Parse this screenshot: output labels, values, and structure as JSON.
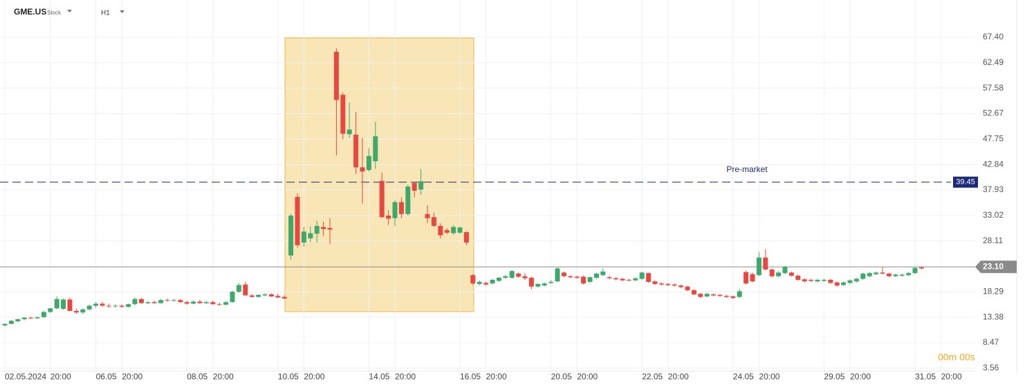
{
  "header": {
    "symbol": "GME.US",
    "asset_type": "Stock",
    "interval": "H1"
  },
  "countdown": "00m 00s",
  "chart_data": {
    "type": "candlestick",
    "categories": [
      "02.05.2024",
      null,
      null,
      null,
      null,
      null,
      null,
      "20:00",
      null,
      null,
      null,
      null,
      null,
      null,
      "06.05",
      null,
      null,
      null,
      "20:00",
      null,
      null,
      null,
      null,
      null,
      null,
      null,
      null,
      null,
      "08.05",
      null,
      null,
      null,
      "20:00",
      null,
      null,
      null,
      null,
      null,
      null,
      null,
      null,
      null,
      "10.05",
      null,
      null,
      null,
      "20:00",
      null,
      null,
      null,
      null,
      null,
      null,
      null,
      null,
      null,
      "14.05",
      null,
      null,
      null,
      "20:00",
      null,
      null,
      null,
      null,
      null,
      null,
      null,
      null,
      null,
      "16.05",
      null,
      null,
      null,
      "20:00",
      null,
      null,
      null,
      null,
      null,
      null,
      null,
      null,
      null,
      "20.05",
      null,
      null,
      null,
      "20:00",
      null,
      null,
      null,
      null,
      null,
      null,
      null,
      null,
      null,
      "22.05",
      null,
      null,
      null,
      "20:00",
      null,
      null,
      null,
      null,
      null,
      null,
      null,
      null,
      null,
      "24.05",
      null,
      null,
      null,
      "20:00",
      null,
      null,
      null,
      null,
      null,
      null,
      null,
      null,
      null,
      "29.05",
      null,
      null,
      null,
      "20:00",
      null,
      null,
      null,
      null,
      null,
      null,
      null,
      null,
      null,
      "31.05",
      null,
      null,
      null,
      "20:00"
    ],
    "open": [
      11.8,
      12.1,
      12.6,
      13.0,
      13.3,
      13.2,
      13.4,
      14.4,
      15.1,
      15.0,
      16.8,
      14.6,
      14.3,
      14.9,
      15.6,
      16.0,
      15.6,
      15.5,
      15.6,
      15.4,
      15.9,
      16.9,
      16.1,
      16.3,
      16.1,
      16.7,
      16.6,
      16.7,
      16.3,
      16.0,
      16.4,
      16.1,
      16.3,
      15.9,
      15.8,
      16.3,
      18.3,
      19.7,
      17.6,
      17.3,
      17.6,
      17.8,
      17.5,
      17.3,
      25.3,
      36.6,
      27.8,
      28.6,
      29.5,
      30.8,
      30.6,
      64.6,
      56.3,
      48.7,
      48.6,
      42.3,
      41.8,
      43.5,
      39.7,
      33.0,
      32.5,
      35.6,
      33.3,
      39.3,
      38.0,
      33.3,
      32.7,
      31.0,
      30.2,
      29.6,
      29.7,
      29.8,
      21.5,
      19.8,
      20.0,
      19.9,
      20.4,
      21.0,
      21.0,
      21.8,
      21.3,
      21.0,
      19.3,
      19.5,
      20.0,
      20.3,
      22.0,
      21.3,
      21.2,
      21.2,
      20.2,
      21.0,
      21.5,
      21.1,
      20.9,
      20.8,
      20.6,
      20.5,
      20.8,
      21.9,
      20.3,
      19.9,
      19.8,
      19.7,
      19.5,
      19.3,
      18.6,
      17.9,
      17.4,
      17.8,
      17.7,
      17.5,
      17.4,
      17.3,
      22.1,
      21.7,
      21.5,
      24.9,
      22.6,
      21.3,
      21.9,
      22.0,
      21.4,
      20.7,
      20.6,
      20.3,
      20.4,
      20.6,
      20.1,
      19.6,
      20.0,
      20.3,
      20.8,
      21.3,
      21.7,
      22.0,
      21.8,
      21.3,
      21.4,
      21.5,
      21.9,
      23.0,
      null,
      null,
      null
    ],
    "high": [
      12.2,
      12.8,
      13.1,
      13.4,
      13.5,
      13.5,
      14.6,
      15.2,
      17.4,
      17.0,
      17.2,
      15.0,
      15.1,
      15.8,
      16.3,
      16.4,
      16.0,
      15.9,
      15.9,
      16.0,
      17.2,
      17.1,
      16.5,
      16.6,
      16.9,
      17.0,
      16.9,
      16.9,
      16.6,
      16.6,
      16.7,
      16.5,
      16.6,
      16.2,
      16.5,
      18.5,
      20.0,
      20.2,
      17.9,
      17.8,
      18.0,
      18.0,
      17.9,
      17.6,
      33.4,
      37.3,
      30.8,
      30.9,
      32.0,
      31.8,
      32.5,
      65.3,
      56.8,
      54.8,
      53.0,
      48.0,
      46.0,
      51.1,
      41.3,
      34.0,
      36.0,
      36.5,
      39.0,
      39.5,
      42.0,
      35.0,
      33.6,
      31.5,
      30.6,
      31.2,
      30.9,
      30.0,
      21.7,
      20.5,
      20.3,
      20.8,
      21.2,
      21.6,
      22.5,
      22.0,
      21.9,
      21.2,
      20.0,
      20.1,
      20.6,
      23.0,
      22.2,
      21.5,
      21.4,
      21.4,
      21.3,
      22.0,
      22.8,
      21.4,
      21.1,
      21.0,
      20.8,
      21.1,
      22.2,
      22.0,
      20.5,
      20.1,
      20.0,
      19.9,
      19.7,
      19.5,
      18.8,
      18.1,
      18.1,
      18.0,
      17.9,
      17.7,
      17.6,
      18.9,
      22.4,
      22.0,
      26.0,
      26.5,
      22.8,
      22.3,
      23.3,
      22.2,
      21.6,
      20.9,
      20.8,
      20.8,
      20.8,
      20.8,
      20.3,
      20.3,
      20.7,
      21.0,
      22.0,
      22.1,
      22.2,
      23.0,
      22.0,
      21.8,
      21.8,
      22.1,
      23.1,
      23.2,
      null,
      null,
      null
    ],
    "low": [
      11.6,
      12.0,
      12.4,
      12.8,
      13.0,
      13.0,
      13.3,
      14.2,
      14.9,
      14.8,
      14.5,
      14.0,
      14.0,
      14.7,
      15.2,
      15.4,
      15.2,
      15.2,
      15.2,
      15.2,
      15.7,
      16.0,
      15.9,
      16.0,
      16.0,
      16.4,
      16.4,
      16.2,
      15.8,
      15.9,
      16.0,
      15.9,
      15.8,
      15.6,
      15.7,
      16.2,
      18.1,
      17.5,
      17.2,
      17.2,
      17.4,
      17.3,
      17.1,
      16.9,
      24.5,
      26.8,
      27.0,
      27.9,
      27.8,
      29.0,
      27.5,
      44.6,
      47.7,
      48.0,
      41.0,
      35.3,
      41.5,
      42.0,
      32.5,
      31.2,
      31.0,
      32.5,
      33.0,
      36.5,
      37.0,
      31.5,
      30.8,
      28.6,
      29.4,
      29.3,
      29.5,
      27.3,
      19.6,
      19.5,
      19.5,
      19.7,
      20.2,
      20.8,
      20.8,
      21.0,
      20.6,
      18.8,
      19.1,
      19.3,
      19.8,
      20.1,
      21.1,
      20.9,
      20.8,
      19.7,
      20.0,
      20.8,
      21.3,
      20.7,
      20.5,
      20.3,
      20.3,
      20.3,
      20.6,
      20.0,
      19.6,
      19.5,
      19.4,
      19.3,
      19.0,
      18.4,
      17.6,
      17.1,
      17.2,
      17.4,
      17.3,
      17.1,
      16.9,
      17.1,
      19.7,
      20.1,
      21.3,
      22.4,
      21.0,
      21.1,
      21.7,
      21.2,
      20.4,
      20.1,
      20.2,
      20.1,
      20.2,
      19.8,
      19.3,
      19.4,
      19.8,
      20.1,
      20.6,
      21.1,
      21.5,
      21.6,
      21.1,
      21.1,
      21.2,
      21.3,
      21.7,
      22.6,
      null,
      null,
      null
    ],
    "close": [
      12.1,
      12.7,
      13.0,
      13.3,
      13.2,
      13.4,
      14.4,
      15.1,
      16.9,
      16.8,
      14.6,
      14.3,
      14.9,
      15.6,
      16.0,
      15.6,
      15.5,
      15.6,
      15.4,
      15.9,
      16.9,
      16.1,
      16.3,
      16.1,
      16.7,
      16.6,
      16.7,
      16.3,
      16.0,
      16.4,
      16.1,
      16.3,
      15.9,
      15.8,
      16.3,
      18.3,
      19.6,
      17.6,
      17.3,
      17.7,
      17.8,
      17.4,
      17.2,
      17.0,
      33.0,
      27.3,
      29.9,
      29.6,
      31.0,
      30.4,
      30.3,
      55.3,
      48.8,
      49.6,
      42.3,
      41.5,
      44.5,
      48.3,
      32.7,
      32.4,
      35.6,
      33.3,
      38.6,
      37.8,
      39.6,
      32.5,
      31.0,
      29.2,
      29.7,
      30.8,
      30.7,
      27.8,
      19.9,
      20.2,
      19.7,
      20.6,
      21.0,
      21.3,
      22.3,
      21.2,
      20.9,
      19.3,
      19.8,
      19.9,
      20.2,
      22.8,
      21.3,
      21.1,
      21.0,
      19.9,
      21.1,
      21.8,
      22.2,
      20.9,
      20.7,
      20.5,
      20.5,
      20.9,
      22.0,
      20.2,
      19.8,
      19.7,
      19.6,
      19.5,
      19.2,
      18.6,
      17.8,
      17.3,
      17.9,
      17.6,
      17.5,
      17.3,
      17.1,
      18.4,
      19.9,
      20.3,
      24.9,
      22.6,
      21.3,
      22.0,
      23.1,
      21.4,
      20.6,
      20.3,
      20.4,
      20.6,
      20.6,
      20.0,
      19.5,
      20.1,
      20.5,
      20.8,
      21.8,
      21.9,
      22.0,
      21.8,
      21.3,
      21.6,
      21.6,
      21.9,
      22.9,
      22.8,
      null,
      null,
      null
    ],
    "up_color": "#3fa86b",
    "down_color": "#e8483f",
    "ylim": [
      3.0,
      74.6
    ],
    "yticks": [
      3.56,
      8.47,
      13.38,
      18.29,
      28.11,
      33.02,
      37.93,
      42.84,
      47.75,
      52.67,
      57.58,
      62.49,
      {
        "value": 67.4,
        "label": "67.40"
      }
    ],
    "grid": true,
    "price_lines": [
      {
        "name": "Pre-market",
        "value": 39.45,
        "color": "#1c2a7a"
      },
      {
        "value": 23.1,
        "value_label": "23.10",
        "color": "#8a8a8a"
      }
    ]
  }
}
